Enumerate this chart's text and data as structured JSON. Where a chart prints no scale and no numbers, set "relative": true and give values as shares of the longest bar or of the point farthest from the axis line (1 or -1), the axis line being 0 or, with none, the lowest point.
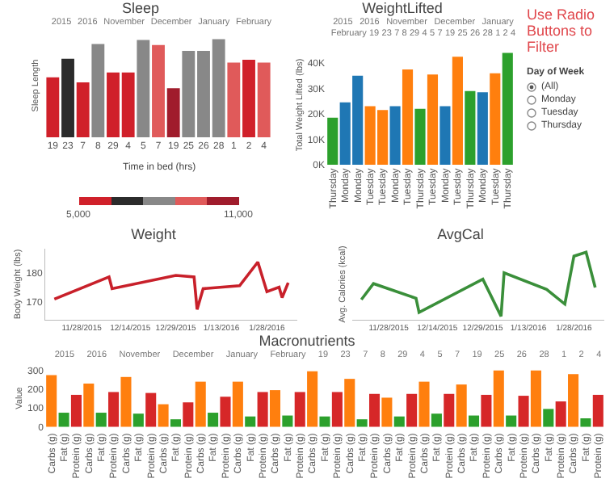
{
  "chart_data": [
    {
      "type": "bar",
      "title": "Sleep",
      "ylabel": "Sleep Length",
      "relative": true,
      "annotations": [
        "2015",
        "2016",
        "November",
        "December",
        "January",
        "February"
      ],
      "categories": [
        "19",
        "23",
        "7",
        "8",
        "29",
        "4",
        "5",
        "7",
        "19",
        "25",
        "26",
        "28",
        "1",
        "2",
        "4"
      ],
      "values": [
        0.61,
        0.8,
        0.56,
        0.95,
        0.66,
        0.66,
        0.99,
        0.94,
        0.5,
        0.88,
        0.88,
        1,
        0.76,
        0.79,
        0.76
      ],
      "colors": [
        "#d0202a",
        "#2b2b2b",
        "#d0202a",
        "#888888",
        "#d0202a",
        "#d0202a",
        "#888888",
        "#e05a5a",
        "#a01c2c",
        "#888888",
        "#888888",
        "#888888",
        "#e05a5a",
        "#d0202a",
        "#e05a5a"
      ],
      "clabel": "Time in bed (hrs)",
      "clim": [
        5000,
        11000
      ],
      "cticks": [
        {
          "value": 5000,
          "label": "5,000"
        },
        {
          "value": 11000,
          "label": "11,000"
        }
      ]
    },
    {
      "type": "bar",
      "title": "WeightLifted",
      "ylabel": "Total Weight Lifted (lbs)",
      "annotations": [
        "2015",
        "2016",
        "November",
        "December",
        "January",
        "February",
        "19",
        "23",
        "7",
        "8",
        "29",
        "4",
        "5",
        "7",
        "19",
        "25",
        "26",
        "28",
        "1",
        "2",
        "4"
      ],
      "categories": [
        "Thursday",
        "Monday",
        "Monday",
        "Tuesday",
        "Tuesday",
        "Monday",
        "Tuesday",
        "Thursday",
        "Tuesday",
        "Monday",
        "Tuesday",
        "Thursday",
        "Monday",
        "Tuesday",
        "Thursday"
      ],
      "values": [
        18500,
        24500,
        35000,
        23000,
        21500,
        23000,
        37500,
        22000,
        35500,
        23000,
        42500,
        29000,
        28500,
        36000,
        44000
      ],
      "colors": [
        "#2ca02c",
        "#1f77b4",
        "#1f77b4",
        "#ff7f0e",
        "#ff7f0e",
        "#1f77b4",
        "#ff7f0e",
        "#2ca02c",
        "#ff7f0e",
        "#1f77b4",
        "#ff7f0e",
        "#2ca02c",
        "#1f77b4",
        "#ff7f0e",
        "#2ca02c"
      ],
      "ylim": [
        0,
        47000
      ],
      "yticks": [
        {
          "value": 0,
          "label": "0K"
        },
        {
          "value": 10000,
          "label": "10K"
        },
        {
          "value": 20000,
          "label": "20K"
        },
        {
          "value": 30000,
          "label": "30K"
        },
        {
          "value": 40000,
          "label": "40K"
        }
      ]
    },
    {
      "type": "other",
      "title": "Use Radio Buttons to Filter",
      "legend_title": "Day of Week",
      "annotations": [
        "(All)",
        "Monday",
        "Tuesday",
        "Thursday"
      ]
    },
    {
      "type": "line",
      "title": "Weight",
      "ylabel": "Body Weight (lbs)",
      "color": "#c8202a",
      "x": [
        "2015-11-19",
        "2015-12-07",
        "2015-12-08",
        "2015-12-29",
        "2016-01-04",
        "2016-01-05",
        "2016-01-07",
        "2016-01-19",
        "2016-01-25",
        "2016-01-28",
        "2016-02-01",
        "2016-02-02",
        "2016-02-04"
      ],
      "values": [
        171,
        178.5,
        174.5,
        179,
        178.5,
        167.5,
        174.5,
        175.5,
        183.5,
        173.5,
        175,
        171.5,
        176.5
      ],
      "xlim": [
        "2015-11-16",
        "2016-02-07"
      ],
      "xticks": [
        {
          "value": "2015-11-28",
          "label": "11/28/2015"
        },
        {
          "value": "2015-12-14",
          "label": "12/14/2015"
        },
        {
          "value": "2015-12-29",
          "label": "12/29/2015"
        },
        {
          "value": "2016-01-13",
          "label": "1/13/2016"
        },
        {
          "value": "2016-01-28",
          "label": "1/28/2016"
        }
      ],
      "ylim": [
        164,
        188
      ],
      "yticks": [
        170,
        180
      ]
    },
    {
      "type": "line",
      "title": "AvgCal",
      "ylabel": "Avg. Calories (kcal)",
      "color": "#3a8f3a",
      "relative": true,
      "x": [
        "2015-11-19",
        "2015-11-23",
        "2015-12-07",
        "2015-12-08",
        "2015-12-29",
        "2016-01-04",
        "2016-01-05",
        "2016-01-19",
        "2016-01-25",
        "2016-01-28",
        "2016-02-01",
        "2016-02-04"
      ],
      "values": [
        0.26,
        0.51,
        0.28,
        0.06,
        0.58,
        0,
        0.68,
        0.42,
        0.19,
        0.94,
        1,
        0.45
      ],
      "xlim": [
        "2015-11-16",
        "2016-02-07"
      ],
      "xticks": [
        {
          "value": "2015-11-28",
          "label": "11/28/2015"
        },
        {
          "value": "2015-12-14",
          "label": "12/14/2015"
        },
        {
          "value": "2015-12-29",
          "label": "12/29/2015"
        },
        {
          "value": "2016-01-13",
          "label": "1/13/2016"
        },
        {
          "value": "2016-01-28",
          "label": "1/28/2016"
        }
      ]
    },
    {
      "type": "bar",
      "title": "Macronutrients",
      "ylabel": "Value",
      "annotations": [
        "2015",
        "2016",
        "November",
        "December",
        "January",
        "February",
        "19",
        "23",
        "7",
        "8",
        "29",
        "4",
        "5",
        "7",
        "19",
        "25",
        "26",
        "28",
        "1",
        "2",
        "4"
      ],
      "categories": [
        "Carbs (g)",
        "Fat (g)",
        "Protein (g)",
        "Carbs (g)",
        "Fat (g)",
        "Protein (g)",
        "Carbs (g)",
        "Fat (g)",
        "Protein (g)",
        "Carbs (g)",
        "Fat (g)",
        "Protein (g)",
        "Carbs (g)",
        "Fat (g)",
        "Protein (g)",
        "Carbs (g)",
        "Fat (g)",
        "Protein (g)",
        "Carbs (g)",
        "Fat (g)",
        "Protein (g)",
        "Carbs (g)",
        "Fat (g)",
        "Protein (g)",
        "Carbs (g)",
        "Fat (g)",
        "Protein (g)",
        "Carbs (g)",
        "Fat (g)",
        "Protein (g)",
        "Carbs (g)",
        "Fat (g)",
        "Protein (g)",
        "Carbs (g)",
        "Fat (g)",
        "Protein (g)",
        "Carbs (g)",
        "Fat (g)",
        "Protein (g)",
        "Carbs (g)",
        "Fat (g)",
        "Protein (g)",
        "Carbs (g)",
        "Fat (g)",
        "Protein (g)"
      ],
      "values": [
        275,
        75,
        170,
        230,
        75,
        185,
        265,
        70,
        180,
        120,
        40,
        130,
        240,
        75,
        160,
        240,
        55,
        185,
        195,
        60,
        185,
        295,
        55,
        185,
        255,
        40,
        175,
        155,
        55,
        175,
        240,
        70,
        175,
        225,
        60,
        170,
        300,
        60,
        165,
        300,
        95,
        135,
        280,
        45,
        170
      ],
      "colors": [
        "#ff7f0e",
        "#2ca02c",
        "#d62728",
        "#ff7f0e",
        "#2ca02c",
        "#d62728",
        "#ff7f0e",
        "#2ca02c",
        "#d62728",
        "#ff7f0e",
        "#2ca02c",
        "#d62728",
        "#ff7f0e",
        "#2ca02c",
        "#d62728",
        "#ff7f0e",
        "#2ca02c",
        "#d62728",
        "#ff7f0e",
        "#2ca02c",
        "#d62728",
        "#ff7f0e",
        "#2ca02c",
        "#d62728",
        "#ff7f0e",
        "#2ca02c",
        "#d62728",
        "#ff7f0e",
        "#2ca02c",
        "#d62728",
        "#ff7f0e",
        "#2ca02c",
        "#d62728",
        "#ff7f0e",
        "#2ca02c",
        "#d62728",
        "#ff7f0e",
        "#2ca02c",
        "#d62728",
        "#ff7f0e",
        "#2ca02c",
        "#d62728",
        "#ff7f0e",
        "#2ca02c",
        "#d62728"
      ],
      "ylim": [
        -15,
        320
      ],
      "yticks": [
        0,
        100,
        200,
        300
      ]
    }
  ]
}
